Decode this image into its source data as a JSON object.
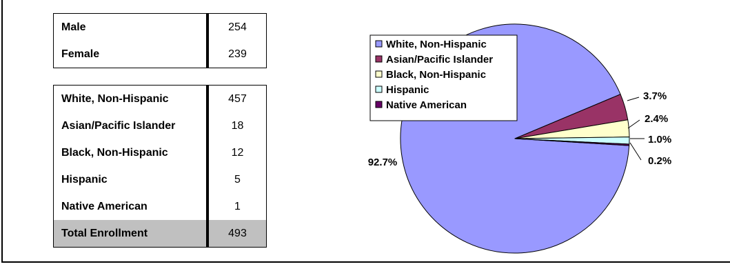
{
  "gender": {
    "rows": [
      {
        "label": "Male",
        "value": "254"
      },
      {
        "label": "Female",
        "value": "239"
      }
    ]
  },
  "race": {
    "rows": [
      {
        "label": "White, Non-Hispanic",
        "value": "457"
      },
      {
        "label": "Asian/Pacific Islander",
        "value": "18"
      },
      {
        "label": "Black, Non-Hispanic",
        "value": "12"
      },
      {
        "label": "Hispanic",
        "value": "5"
      },
      {
        "label": "Native American",
        "value": "1"
      }
    ],
    "total": {
      "label": "Total Enrollment",
      "value": "493"
    }
  },
  "chart_data": {
    "type": "pie",
    "categories": [
      "White, Non-Hispanic",
      "Asian/Pacific Islander",
      "Black, Non-Hispanic",
      "Hispanic",
      "Native American"
    ],
    "values": [
      92.7,
      3.7,
      2.4,
      1.0,
      0.2
    ],
    "data_labels": [
      "92.7%",
      "3.7%",
      "2.4%",
      "1.0%",
      "0.2%"
    ],
    "colors": [
      "#9999ff",
      "#993366",
      "#ffffcc",
      "#ccffff",
      "#660066"
    ],
    "legend_position": "top-left"
  }
}
